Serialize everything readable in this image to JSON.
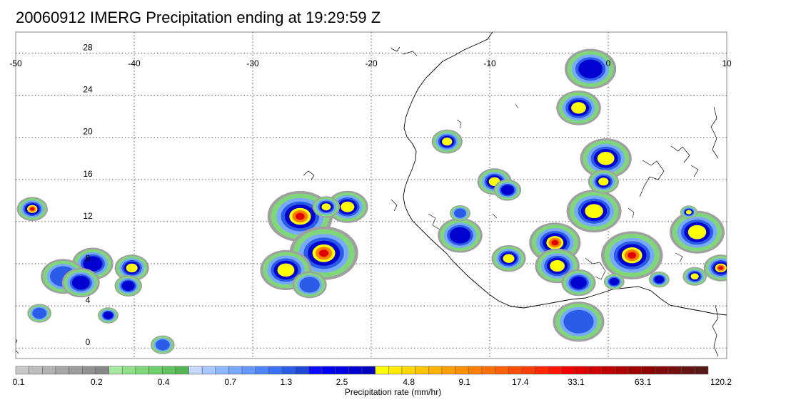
{
  "title": "20060912 IMERG Precipitation ending at 19:29:59 Z",
  "map": {
    "lon_range": [
      -50,
      10
    ],
    "lat_range": [
      -1,
      30
    ],
    "lon_ticks": [
      -50,
      -40,
      -30,
      -20,
      -10,
      0,
      10
    ],
    "lat_ticks": [
      0,
      4,
      8,
      12,
      16,
      20,
      24,
      28
    ],
    "grid": true,
    "grid_style": "dotted",
    "coastlines": true
  },
  "colorbar": {
    "label": "Precipitation rate (mm/hr)",
    "tick_labels": [
      "0.1",
      "0.2",
      "0.4",
      "0.7",
      "1.3",
      "2.5",
      "4.8",
      "9.1",
      "17.4",
      "33.1",
      "63.1",
      "120.2"
    ],
    "colors": [
      "#c8c8c8",
      "#bdbdbd",
      "#b2b2b2",
      "#a7a7a7",
      "#9c9c9c",
      "#919191",
      "#888888",
      "#a6e8a0",
      "#92e08a",
      "#7fd77a",
      "#6fcf6b",
      "#62c25e",
      "#55b552",
      "#c5d8ff",
      "#a9c7ff",
      "#8fb7ff",
      "#79a8ff",
      "#6699ff",
      "#4d85ff",
      "#3a70f5",
      "#2a5ce8",
      "#1f48d8",
      "#0b0bff",
      "#0000f0",
      "#0000e0",
      "#0000d0",
      "#0000c0",
      "#ffff00",
      "#ffea00",
      "#ffd800",
      "#ffc500",
      "#ffb200",
      "#ffa000",
      "#ff9000",
      "#ff8000",
      "#ff7000",
      "#ff6000",
      "#ff5000",
      "#ff3c00",
      "#ff2800",
      "#ff1400",
      "#f00000",
      "#e00000",
      "#d00000",
      "#c00000",
      "#b00000",
      "#a00000",
      "#900000",
      "#820a0a",
      "#741010",
      "#661414",
      "#581818"
    ]
  },
  "precip_cells": [
    {
      "lon": -48.6,
      "lat": 13.2,
      "r": 0.9,
      "i": 4
    },
    {
      "lon": -43.5,
      "lat": 8.0,
      "r": 1.2,
      "i": 2
    },
    {
      "lon": -40.2,
      "lat": 7.6,
      "r": 1.0,
      "i": 3
    },
    {
      "lon": -46.0,
      "lat": 6.8,
      "r": 1.3,
      "i": 1
    },
    {
      "lon": -44.5,
      "lat": 6.2,
      "r": 1.1,
      "i": 2
    },
    {
      "lon": -40.5,
      "lat": 5.9,
      "r": 0.8,
      "i": 2
    },
    {
      "lon": -42.2,
      "lat": 3.1,
      "r": 0.6,
      "i": 2
    },
    {
      "lon": -48.0,
      "lat": 3.3,
      "r": 0.7,
      "i": 1
    },
    {
      "lon": -37.6,
      "lat": 0.3,
      "r": 0.7,
      "i": 1
    },
    {
      "lon": -26.0,
      "lat": 12.5,
      "r": 1.9,
      "i": 4
    },
    {
      "lon": -22.0,
      "lat": 13.4,
      "r": 1.2,
      "i": 3
    },
    {
      "lon": -23.8,
      "lat": 13.4,
      "r": 0.8,
      "i": 3
    },
    {
      "lon": -24.0,
      "lat": 9.0,
      "r": 2.0,
      "i": 4
    },
    {
      "lon": -27.2,
      "lat": 7.4,
      "r": 1.5,
      "i": 3
    },
    {
      "lon": -25.2,
      "lat": 6.0,
      "r": 1.0,
      "i": 1
    },
    {
      "lon": -13.6,
      "lat": 19.6,
      "r": 0.9,
      "i": 3
    },
    {
      "lon": -9.6,
      "lat": 15.8,
      "r": 1.0,
      "i": 3
    },
    {
      "lon": -8.5,
      "lat": 15.0,
      "r": 0.8,
      "i": 2
    },
    {
      "lon": -12.5,
      "lat": 10.7,
      "r": 1.3,
      "i": 2
    },
    {
      "lon": -8.4,
      "lat": 8.5,
      "r": 1.0,
      "i": 3
    },
    {
      "lon": -4.5,
      "lat": 10.0,
      "r": 1.5,
      "i": 4
    },
    {
      "lon": -4.3,
      "lat": 7.8,
      "r": 1.3,
      "i": 3
    },
    {
      "lon": -2.5,
      "lat": 6.2,
      "r": 1.0,
      "i": 2
    },
    {
      "lon": -1.2,
      "lat": 13.0,
      "r": 1.6,
      "i": 3
    },
    {
      "lon": -0.2,
      "lat": 18.0,
      "r": 1.5,
      "i": 3
    },
    {
      "lon": -0.4,
      "lat": 15.8,
      "r": 0.9,
      "i": 3
    },
    {
      "lon": -1.5,
      "lat": 26.5,
      "r": 1.5,
      "i": 2
    },
    {
      "lon": -2.5,
      "lat": 22.8,
      "r": 1.3,
      "i": 3
    },
    {
      "lon": 2.0,
      "lat": 8.8,
      "r": 1.8,
      "i": 4
    },
    {
      "lon": 7.5,
      "lat": 11.0,
      "r": 1.6,
      "i": 3
    },
    {
      "lon": 9.5,
      "lat": 7.6,
      "r": 1.0,
      "i": 4
    },
    {
      "lon": 7.3,
      "lat": 6.8,
      "r": 0.7,
      "i": 3
    },
    {
      "lon": 4.3,
      "lat": 6.5,
      "r": 0.6,
      "i": 2
    },
    {
      "lon": -2.5,
      "lat": 2.5,
      "r": 1.5,
      "i": 1
    },
    {
      "lon": 0.5,
      "lat": 6.3,
      "r": 0.6,
      "i": 2
    },
    {
      "lon": -12.5,
      "lat": 12.8,
      "r": 0.6,
      "i": 1
    },
    {
      "lon": 6.8,
      "lat": 12.9,
      "r": 0.5,
      "i": 3
    }
  ]
}
